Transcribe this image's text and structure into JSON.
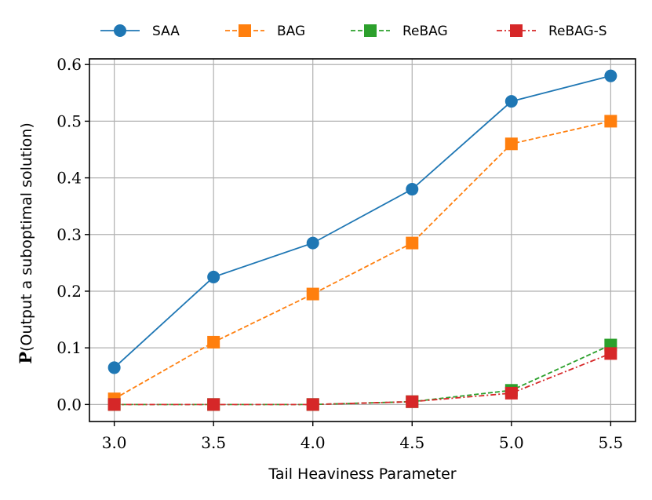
{
  "chart_data": {
    "type": "line",
    "xlabel": "Tail Heaviness Parameter",
    "ylabel_prefix": "P",
    "ylabel_rest": "(Output a suboptimal solution)",
    "x": [
      3.0,
      3.5,
      4.0,
      4.5,
      5.0,
      5.5
    ],
    "x_tick_labels": [
      "3.0",
      "3.5",
      "4.0",
      "4.5",
      "5.0",
      "5.5"
    ],
    "y_ticks": [
      0.0,
      0.1,
      0.2,
      0.3,
      0.4,
      0.5,
      0.6
    ],
    "y_tick_labels": [
      "0.0",
      "0.1",
      "0.2",
      "0.3",
      "0.4",
      "0.5",
      "0.6"
    ],
    "xlim": [
      2.875,
      5.625
    ],
    "ylim": [
      -0.03,
      0.61
    ],
    "grid": true,
    "legend_placement": "top, above plot",
    "series": [
      {
        "name": "SAA",
        "color": "#1f77b4",
        "marker": "circle",
        "dash": "solid",
        "values": [
          0.065,
          0.225,
          0.285,
          0.38,
          0.535,
          0.58
        ]
      },
      {
        "name": "BAG",
        "color": "#ff7f0e",
        "marker": "square",
        "dash": "dashed",
        "values": [
          0.01,
          0.11,
          0.195,
          0.285,
          0.46,
          0.5
        ]
      },
      {
        "name": "ReBAG",
        "color": "#2ca02c",
        "marker": "square",
        "dash": "dashed",
        "values": [
          0.0,
          0.0,
          0.0,
          0.005,
          0.025,
          0.105
        ]
      },
      {
        "name": "ReBAG-S",
        "color": "#d62728",
        "marker": "square",
        "dash": "dashdot",
        "values": [
          0.0,
          0.0,
          0.0,
          0.005,
          0.02,
          0.09
        ]
      }
    ]
  }
}
